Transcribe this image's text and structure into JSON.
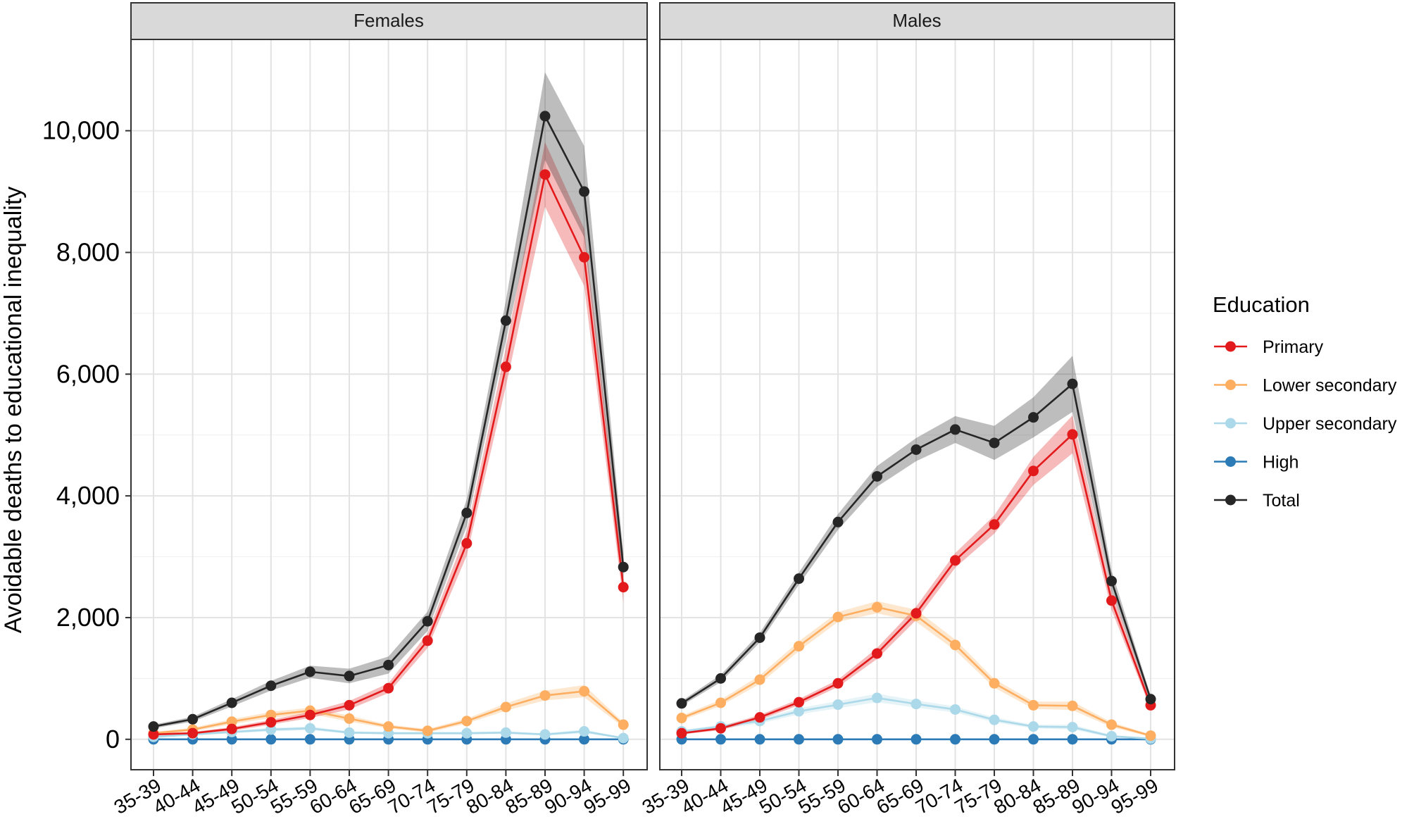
{
  "chart_data": {
    "type": "line",
    "ylabel": "Avoidable deaths to educational inequality",
    "xlabel": "",
    "ylim": [
      -500,
      11500
    ],
    "yticks": [
      0,
      2000,
      4000,
      6000,
      8000,
      10000
    ],
    "ytick_labels": [
      "0",
      "2,000",
      "4,000",
      "6,000",
      "8,000",
      "10,000"
    ],
    "grid": true,
    "categories": [
      "35-39",
      "40-44",
      "45-49",
      "50-54",
      "55-59",
      "60-64",
      "65-69",
      "70-74",
      "75-79",
      "80-84",
      "85-89",
      "90-94",
      "95-99"
    ],
    "legend": {
      "title": "Education",
      "position": "right",
      "entries": [
        {
          "name": "Primary",
          "color": "#e31a1c"
        },
        {
          "name": "Lower secondary",
          "color": "#fdae61"
        },
        {
          "name": "Upper secondary",
          "color": "#abd9e9"
        },
        {
          "name": "High",
          "color": "#2c7bb6"
        },
        {
          "name": "Total",
          "color": "#262626"
        }
      ]
    },
    "panels": [
      {
        "title": "Females",
        "series": [
          {
            "name": "Primary",
            "color": "#e31a1c",
            "values": [
              80,
              100,
              170,
              280,
              400,
              560,
              840,
              1620,
              3220,
              6120,
              9280,
              7920,
              2500
            ],
            "lower": [
              60,
              80,
              140,
              240,
              350,
              490,
              760,
              1500,
              3020,
              5800,
              8750,
              7450,
              2250
            ],
            "upper": [
              100,
              120,
              200,
              320,
              450,
              630,
              920,
              1740,
              3420,
              6440,
              9810,
              8390,
              2750
            ]
          },
          {
            "name": "Lower secondary",
            "color": "#fdae61",
            "values": [
              100,
              160,
              290,
              400,
              470,
              340,
              210,
              140,
              300,
              530,
              720,
              790,
              240
            ],
            "lower": [
              80,
              130,
              250,
              350,
              420,
              290,
              180,
              110,
              260,
              470,
              640,
              690,
              200
            ],
            "upper": [
              120,
              190,
              330,
              450,
              520,
              390,
              240,
              170,
              340,
              590,
              800,
              890,
              280
            ]
          },
          {
            "name": "Upper secondary",
            "color": "#abd9e9",
            "values": [
              40,
              80,
              120,
              160,
              180,
              110,
              100,
              100,
              100,
              110,
              80,
              130,
              20
            ],
            "lower": [
              30,
              60,
              100,
              130,
              150,
              90,
              80,
              80,
              80,
              90,
              60,
              100,
              10
            ],
            "upper": [
              50,
              100,
              140,
              190,
              210,
              130,
              120,
              120,
              120,
              130,
              100,
              160,
              30
            ]
          },
          {
            "name": "High",
            "color": "#2c7bb6",
            "values": [
              0,
              0,
              0,
              0,
              0,
              0,
              0,
              0,
              0,
              0,
              0,
              0,
              0
            ],
            "lower": [
              0,
              0,
              0,
              0,
              0,
              0,
              0,
              0,
              0,
              0,
              0,
              0,
              0
            ],
            "upper": [
              0,
              0,
              0,
              0,
              0,
              0,
              0,
              0,
              0,
              0,
              0,
              0,
              0
            ]
          },
          {
            "name": "Total",
            "color": "#262626",
            "values": [
              210,
              330,
              600,
              880,
              1110,
              1040,
              1220,
              1940,
              3720,
              6880,
              10240,
              9000,
              2830
            ],
            "lower": [
              180,
              290,
              540,
              800,
              1010,
              920,
              1080,
              1780,
              3500,
              6550,
              9520,
              8250,
              2600
            ],
            "upper": [
              240,
              370,
              660,
              960,
              1210,
              1160,
              1360,
              2100,
              3940,
              7210,
              10960,
              9750,
              3060
            ]
          }
        ]
      },
      {
        "title": "Males",
        "series": [
          {
            "name": "Primary",
            "color": "#e31a1c",
            "values": [
              100,
              180,
              360,
              610,
              920,
              1410,
              2070,
              2940,
              3530,
              4410,
              5010,
              2280,
              560
            ],
            "lower": [
              80,
              150,
              320,
              560,
              860,
              1320,
              1960,
              2820,
              3380,
              4180,
              4700,
              2130,
              500
            ],
            "upper": [
              120,
              210,
              400,
              660,
              980,
              1500,
              2180,
              3060,
              3680,
              4640,
              5320,
              2430,
              620
            ]
          },
          {
            "name": "Lower secondary",
            "color": "#fdae61",
            "values": [
              350,
              600,
              980,
              1530,
              2010,
              2170,
              2030,
              1550,
              920,
              560,
              550,
              240,
              60
            ],
            "lower": [
              310,
              550,
              910,
              1450,
              1930,
              2070,
              1930,
              1460,
              850,
              500,
              480,
              200,
              40
            ],
            "upper": [
              390,
              650,
              1050,
              1610,
              2090,
              2270,
              2130,
              1640,
              990,
              620,
              620,
              280,
              80
            ]
          },
          {
            "name": "Upper secondary",
            "color": "#abd9e9",
            "values": [
              130,
              210,
              300,
              460,
              570,
              680,
              580,
              490,
              320,
              210,
              200,
              50,
              10
            ],
            "lower": [
              110,
              180,
              260,
              410,
              510,
              610,
              520,
              440,
              280,
              180,
              160,
              30,
              0
            ],
            "upper": [
              150,
              240,
              340,
              510,
              630,
              750,
              640,
              540,
              360,
              240,
              240,
              70,
              20
            ]
          },
          {
            "name": "High",
            "color": "#2c7bb6",
            "values": [
              0,
              0,
              0,
              0,
              0,
              0,
              0,
              0,
              0,
              0,
              0,
              0,
              0
            ],
            "lower": [
              0,
              0,
              0,
              0,
              0,
              0,
              0,
              0,
              0,
              0,
              0,
              0,
              0
            ],
            "upper": [
              0,
              0,
              0,
              0,
              0,
              0,
              0,
              0,
              0,
              0,
              0,
              0,
              0
            ]
          },
          {
            "name": "Total",
            "color": "#262626",
            "values": [
              590,
              1000,
              1670,
              2640,
              3570,
              4320,
              4760,
              5090,
              4870,
              5290,
              5840,
              2600,
              660
            ],
            "lower": [
              550,
              940,
              1590,
              2540,
              3440,
              4150,
              4570,
              4870,
              4590,
              4960,
              5380,
              2430,
              600
            ],
            "upper": [
              630,
              1060,
              1750,
              2740,
              3700,
              4490,
              4950,
              5310,
              5150,
              5620,
              6300,
              2770,
              720
            ]
          }
        ]
      }
    ]
  }
}
